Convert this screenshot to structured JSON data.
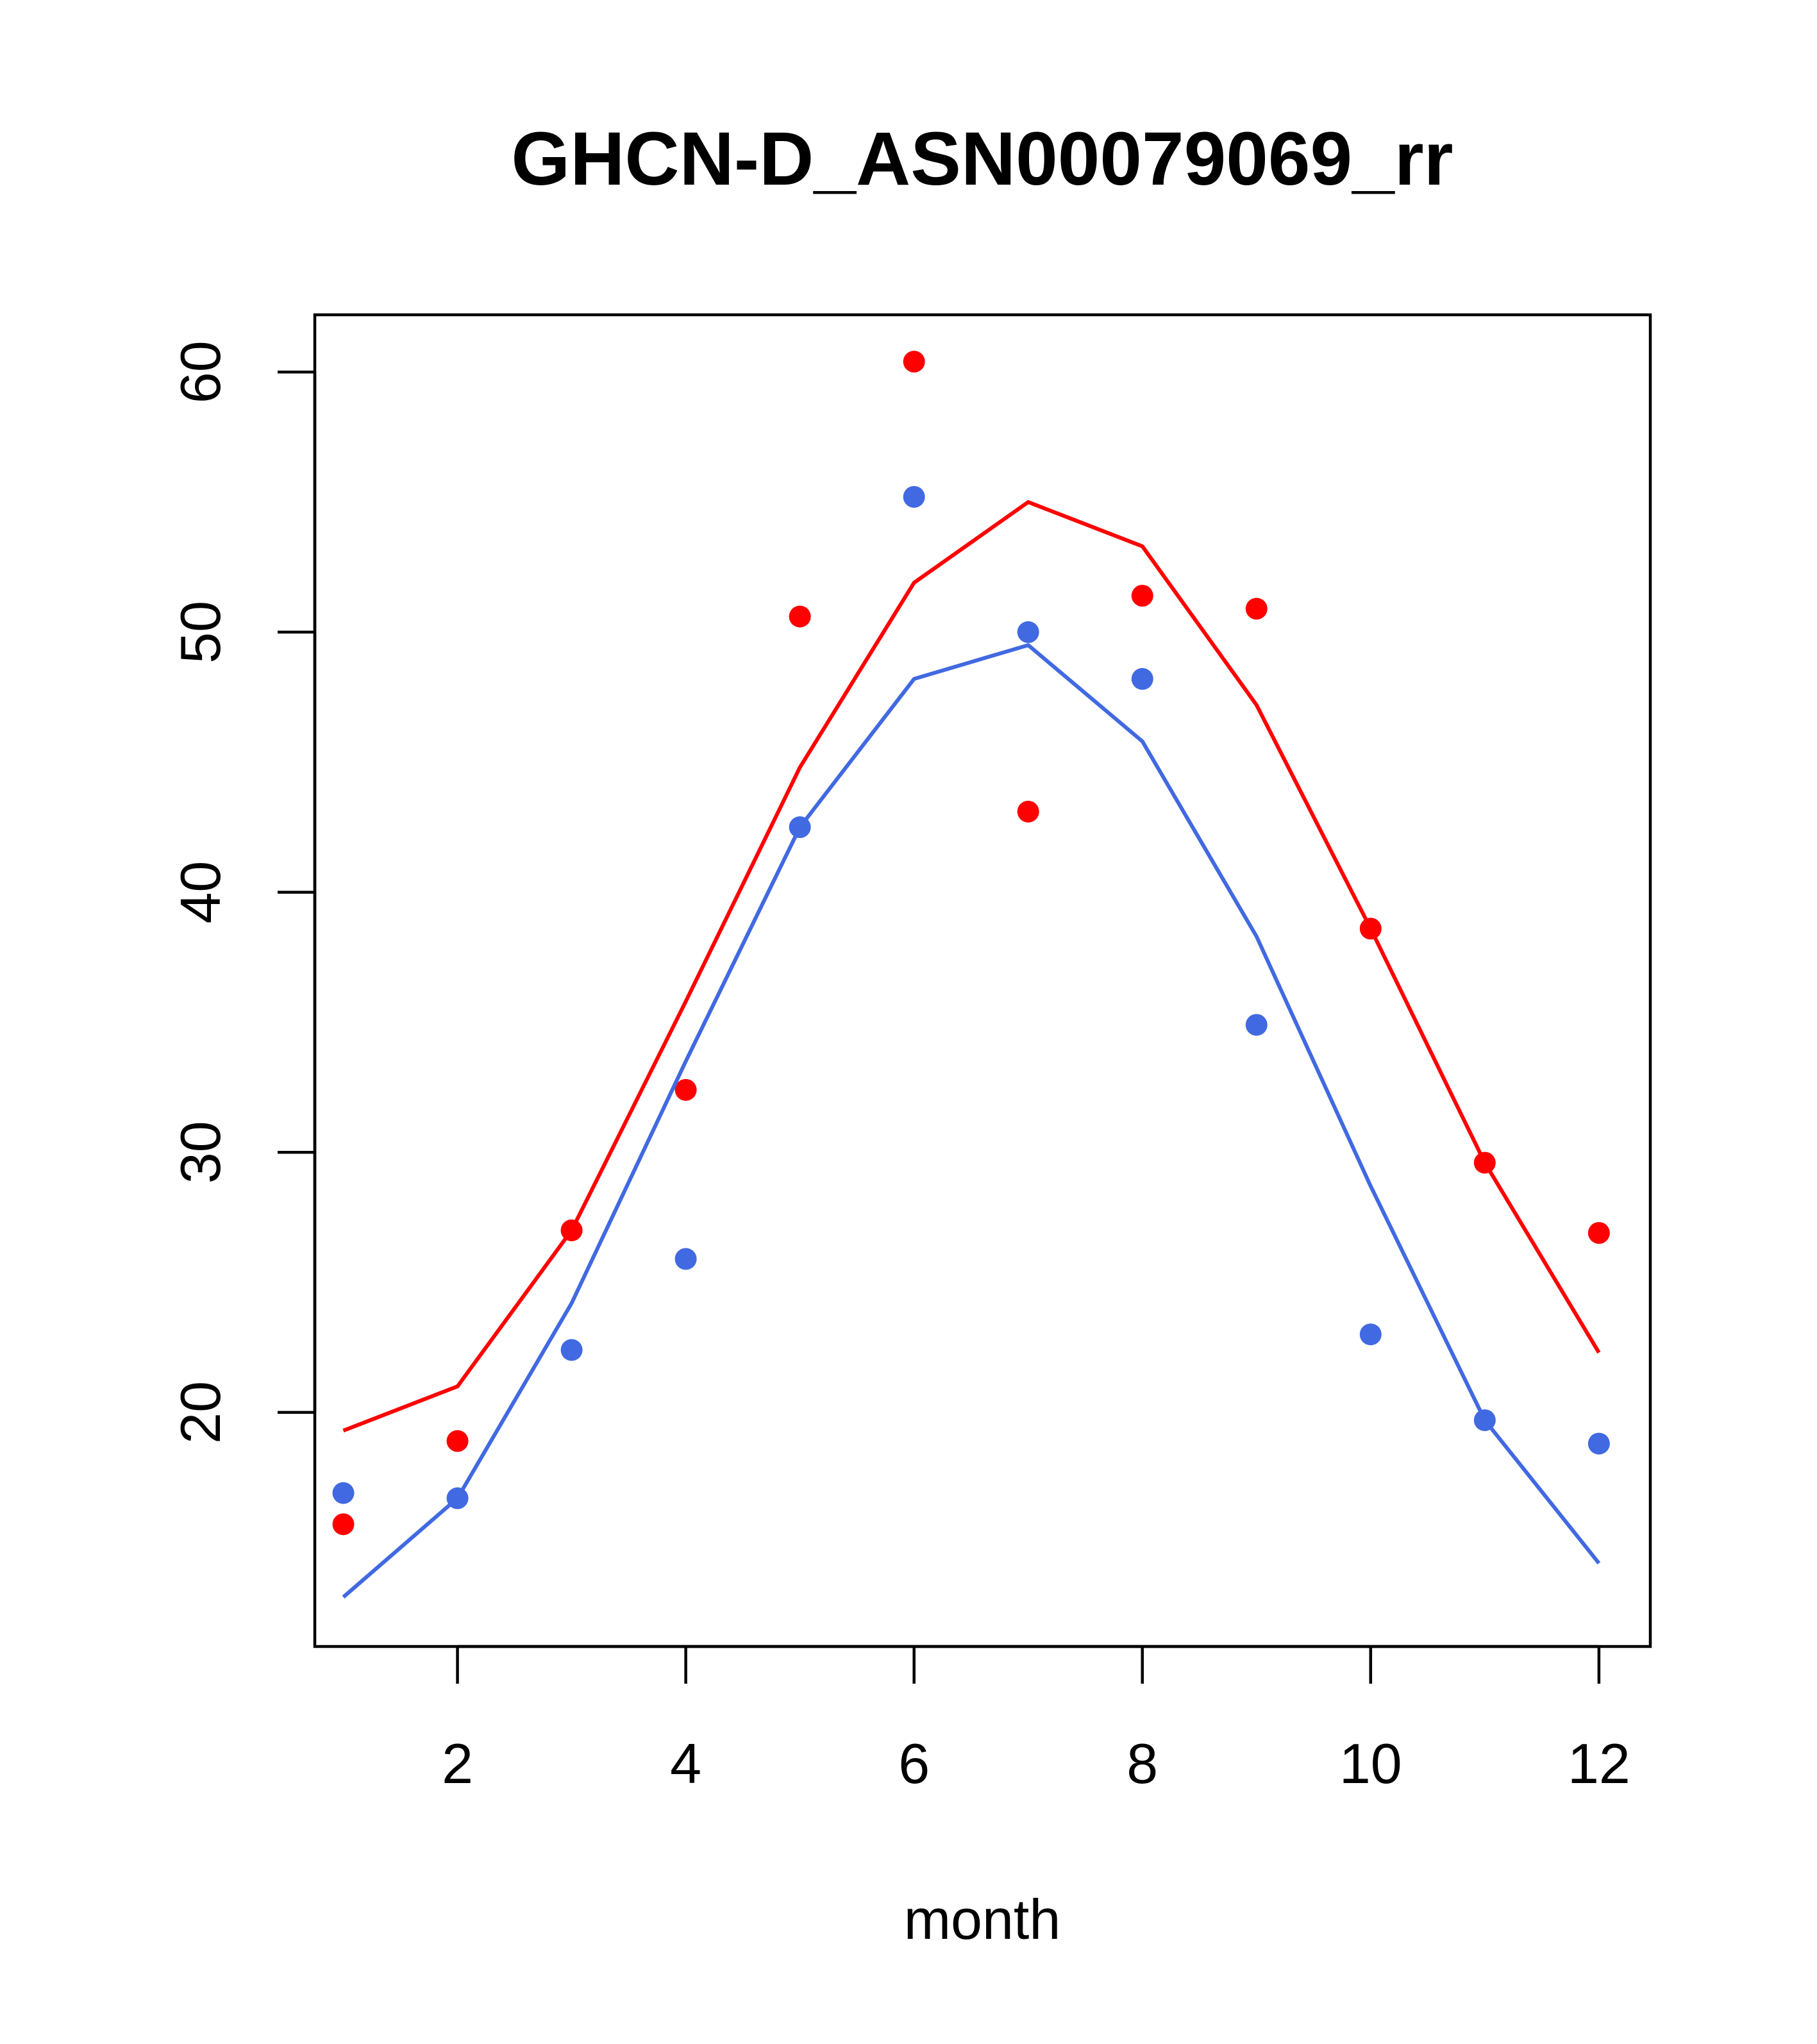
{
  "chart_data": {
    "type": "scatter",
    "title": "GHCN-D_ASN00079069_rr",
    "xlabel": "month",
    "ylabel": "",
    "xlim": [
      0.75,
      12.45
    ],
    "ylim": [
      11,
      62.2
    ],
    "x_ticks": [
      2,
      4,
      6,
      8,
      10,
      12
    ],
    "y_ticks": [
      20,
      30,
      40,
      50,
      60
    ],
    "grid": false,
    "legend": "none",
    "x": [
      1,
      2,
      3,
      4,
      5,
      6,
      7,
      8,
      9,
      10,
      11,
      12
    ],
    "series": [
      {
        "color": "#ff0000",
        "points": [
          15.7,
          18.9,
          27.0,
          32.4,
          50.6,
          60.4,
          43.1,
          51.4,
          50.9,
          38.6,
          29.6,
          26.9
        ],
        "line": [
          19.3,
          21.0,
          27.0,
          35.8,
          44.8,
          51.9,
          55.0,
          53.3,
          47.2,
          38.6,
          29.6,
          22.3
        ]
      },
      {
        "color": "#4169e1",
        "points": [
          16.9,
          16.7,
          22.4,
          25.9,
          42.5,
          55.2,
          50.0,
          48.2,
          34.9,
          23.0,
          19.7,
          18.8
        ],
        "line": [
          12.9,
          16.7,
          24.2,
          33.5,
          42.5,
          48.2,
          49.5,
          45.8,
          38.3,
          28.7,
          19.7,
          14.2
        ]
      }
    ]
  }
}
